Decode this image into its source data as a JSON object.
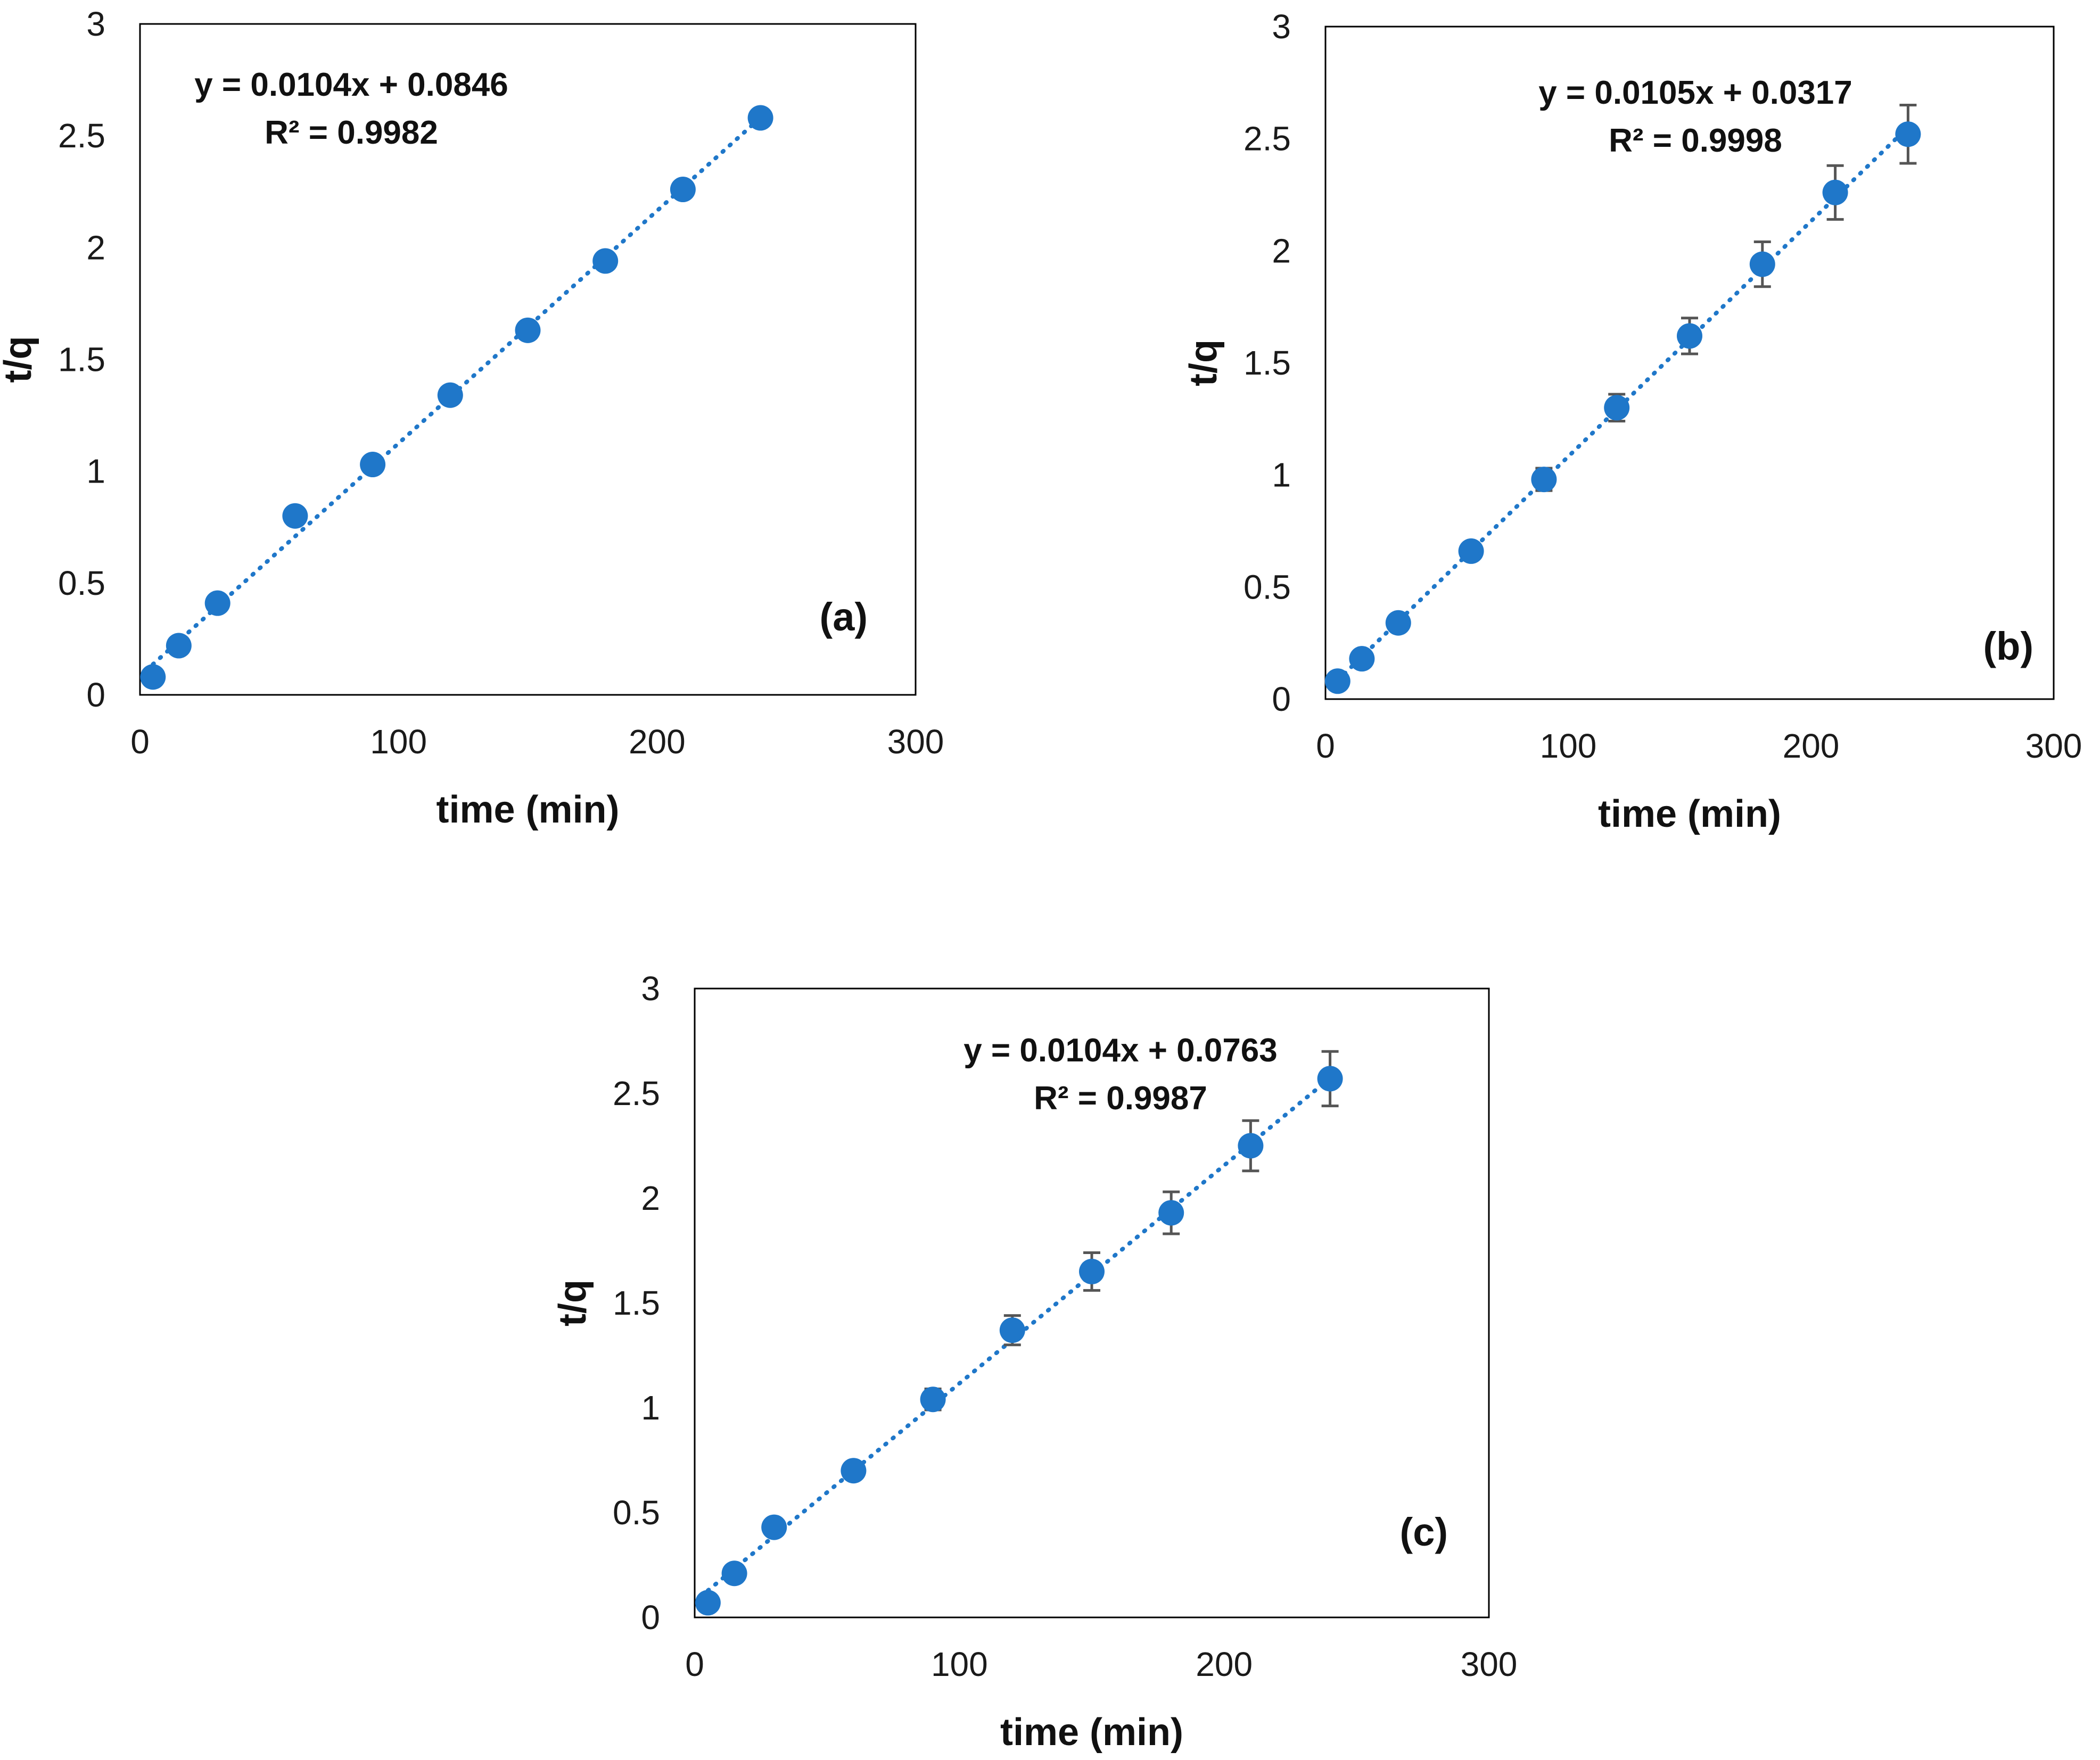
{
  "figure": {
    "background": "#ffffff",
    "marker_color": "#1f77c9",
    "trend_color": "#1f77c9",
    "error_bar_color": "#555555",
    "frame_color": "#000000"
  },
  "chart_data": [
    {
      "type": "scatter",
      "panel_label": "(a)",
      "xlabel": "time (min)",
      "ylabel": "t/q",
      "xlim": [
        0,
        300
      ],
      "ylim": [
        0,
        3
      ],
      "x_ticks": [
        "0",
        "100",
        "200",
        "300"
      ],
      "y_ticks": [
        "0",
        "0.5",
        "1",
        "1.5",
        "2",
        "2.5",
        "3"
      ],
      "x": [
        5,
        15,
        30,
        60,
        90,
        120,
        150,
        180,
        210,
        240
      ],
      "y": [
        0.08,
        0.22,
        0.41,
        0.8,
        1.03,
        1.34,
        1.63,
        1.94,
        2.26,
        2.58
      ],
      "error": null,
      "trendline": {
        "type": "linear",
        "slope": 0.0104,
        "intercept": 0.0846,
        "style": "dotted",
        "x_range": [
          5,
          240
        ]
      },
      "equation": "y = 0.0104x + 0.0846",
      "r2": "R² = 0.9982",
      "equation_position": "top-left",
      "label_position": "bottom-right"
    },
    {
      "type": "scatter",
      "panel_label": "(b)",
      "xlabel": "time (min)",
      "ylabel": "t/q",
      "xlim": [
        0,
        300
      ],
      "ylim": [
        0,
        3
      ],
      "x_ticks": [
        "0",
        "100",
        "200",
        "300"
      ],
      "y_ticks": [
        "0",
        "0.5",
        "1",
        "1.5",
        "2",
        "2.5",
        "3"
      ],
      "x": [
        5,
        15,
        30,
        60,
        90,
        120,
        150,
        180,
        210,
        240
      ],
      "y": [
        0.08,
        0.18,
        0.34,
        0.66,
        0.98,
        1.3,
        1.62,
        1.94,
        2.26,
        2.52
      ],
      "error": [
        0.01,
        0.01,
        0.02,
        0.03,
        0.05,
        0.06,
        0.08,
        0.1,
        0.12,
        0.13
      ],
      "trendline": {
        "type": "linear",
        "slope": 0.0105,
        "intercept": 0.0317,
        "style": "dotted",
        "x_range": [
          5,
          240
        ]
      },
      "equation": "y = 0.0105x + 0.0317",
      "r2": "R² = 0.9998",
      "equation_position": "top-center",
      "label_position": "bottom-right"
    },
    {
      "type": "scatter",
      "panel_label": "(c)",
      "xlabel": "time (min)",
      "ylabel": "t/q",
      "xlim": [
        0,
        300
      ],
      "ylim": [
        0,
        3
      ],
      "x_ticks": [
        "0",
        "100",
        "200",
        "300"
      ],
      "y_ticks": [
        "0",
        "0.5",
        "1",
        "1.5",
        "2",
        "2.5",
        "3"
      ],
      "x": [
        5,
        15,
        30,
        60,
        90,
        120,
        150,
        180,
        210,
        240
      ],
      "y": [
        0.07,
        0.21,
        0.43,
        0.7,
        1.04,
        1.37,
        1.65,
        1.93,
        2.25,
        2.57
      ],
      "error": [
        0.01,
        0.01,
        0.02,
        0.03,
        0.05,
        0.07,
        0.09,
        0.1,
        0.12,
        0.13
      ],
      "trendline": {
        "type": "linear",
        "slope": 0.0104,
        "intercept": 0.0763,
        "style": "dotted",
        "x_range": [
          5,
          240
        ]
      },
      "equation": "y = 0.0104x + 0.0763",
      "r2": "R² = 0.9987",
      "equation_position": "top-center",
      "label_position": "bottom-right"
    }
  ]
}
